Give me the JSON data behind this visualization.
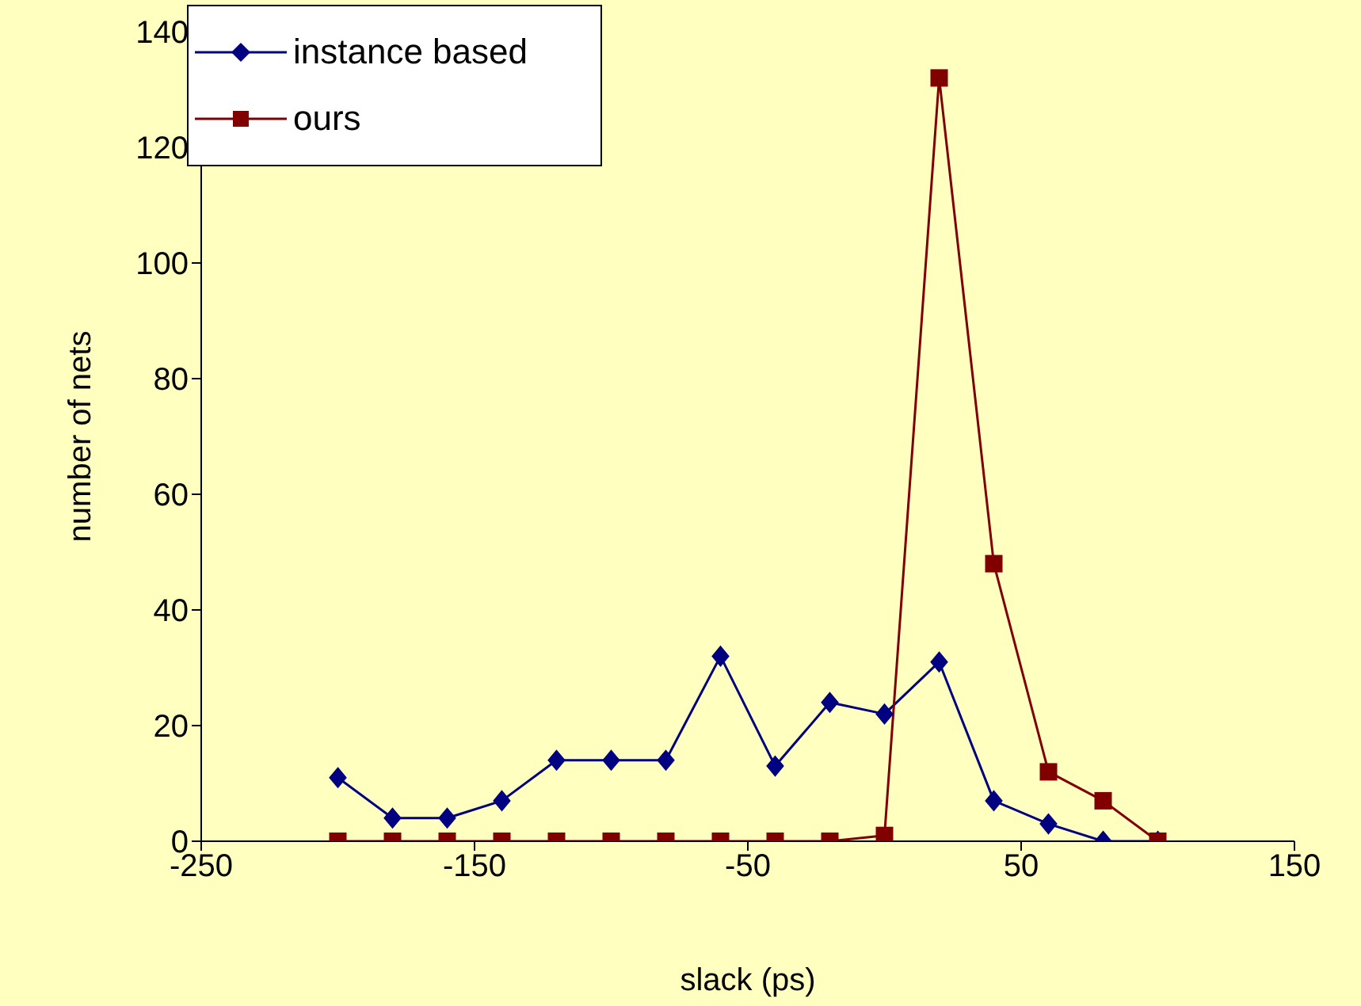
{
  "chart_data": {
    "type": "line",
    "xlabel": "slack (ps)",
    "ylabel": "number of nets",
    "x": [
      -200,
      -180,
      -160,
      -140,
      -120,
      -100,
      -80,
      -60,
      -40,
      -20,
      0,
      20,
      40,
      60,
      80,
      100
    ],
    "series": [
      {
        "name": "instance based",
        "color": "#000080",
        "marker": "diamond",
        "values": [
          11,
          4,
          4,
          7,
          14,
          14,
          14,
          32,
          13,
          24,
          22,
          31,
          7,
          3,
          0,
          0
        ]
      },
      {
        "name": "ours",
        "color": "#800000",
        "marker": "square",
        "values": [
          0,
          0,
          0,
          0,
          0,
          0,
          0,
          0,
          0,
          0,
          1,
          132,
          48,
          12,
          7,
          0
        ]
      }
    ],
    "xlim": [
      -250,
      150
    ],
    "xticks": [
      -250,
      -150,
      -50,
      50,
      150
    ],
    "ylim": [
      0,
      140
    ],
    "yticks": [
      0,
      20,
      40,
      60,
      80,
      100,
      120,
      140
    ],
    "grid": false,
    "legend": "top left"
  }
}
